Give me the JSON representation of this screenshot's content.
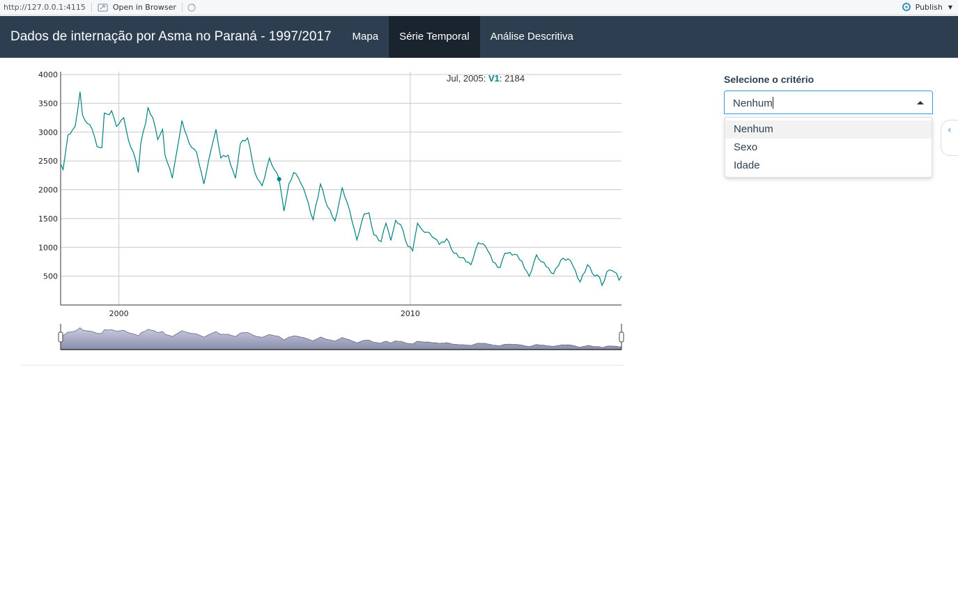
{
  "viewer": {
    "url": "http://127.0.0.1:4115",
    "open_browser": "Open in Browser",
    "publish": "Publish"
  },
  "navbar": {
    "title": "Dados de internação por Asma no Paraná - 1997/2017",
    "tabs": [
      {
        "label": "Mapa",
        "active": false
      },
      {
        "label": "Série Temporal",
        "active": true
      },
      {
        "label": "Análise Descritiva",
        "active": false
      }
    ]
  },
  "legend": {
    "date": "Jul, 2005: ",
    "series": "V1",
    "value": ": 2184"
  },
  "sidebar": {
    "select_label": "Selecione o critério",
    "select_value": "Nenhum",
    "options": [
      "Nenhum",
      "Sexo",
      "Idade"
    ]
  },
  "colors": {
    "navbar": "#2c3e50",
    "navbar_active": "#1a242f",
    "series": "#008080",
    "accent": "#3498db"
  },
  "chart_data": {
    "type": "line",
    "series": [
      {
        "name": "V1",
        "x_start": "1998-01",
        "frequency": "monthly",
        "anchors": [
          [
            "1998-01",
            2450
          ],
          [
            "1998-02",
            2350
          ],
          [
            "1998-04",
            2950
          ],
          [
            "1998-07",
            3100
          ],
          [
            "1998-09",
            3700
          ],
          [
            "1998-10",
            3300
          ],
          [
            "1998-12",
            3150
          ],
          [
            "1999-02",
            3050
          ],
          [
            "1999-04",
            2750
          ],
          [
            "1999-06",
            2730
          ],
          [
            "1999-07",
            3330
          ],
          [
            "1999-09",
            3300
          ],
          [
            "1999-10",
            3370
          ],
          [
            "1999-12",
            3100
          ],
          [
            "2000-03",
            3250
          ],
          [
            "2000-05",
            2850
          ],
          [
            "2000-07",
            2650
          ],
          [
            "2000-09",
            2300
          ],
          [
            "2000-10",
            2800
          ],
          [
            "2000-12",
            3150
          ],
          [
            "2001-01",
            3430
          ],
          [
            "2001-03",
            3250
          ],
          [
            "2001-05",
            2870
          ],
          [
            "2001-07",
            3050
          ],
          [
            "2001-08",
            2600
          ],
          [
            "2001-11",
            2200
          ],
          [
            "2002-01",
            2700
          ],
          [
            "2002-03",
            3200
          ],
          [
            "2002-06",
            2800
          ],
          [
            "2002-09",
            2650
          ],
          [
            "2002-12",
            2100
          ],
          [
            "2003-03",
            2700
          ],
          [
            "2003-05",
            3050
          ],
          [
            "2003-07",
            2550
          ],
          [
            "2003-10",
            2600
          ],
          [
            "2004-01",
            2200
          ],
          [
            "2004-03",
            2800
          ],
          [
            "2004-06",
            2900
          ],
          [
            "2004-09",
            2300
          ],
          [
            "2004-12",
            2070
          ],
          [
            "2005-03",
            2550
          ],
          [
            "2005-05",
            2350
          ],
          [
            "2005-07",
            2184
          ],
          [
            "2005-09",
            1630
          ],
          [
            "2005-11",
            2100
          ],
          [
            "2006-01",
            2300
          ],
          [
            "2006-03",
            2200
          ],
          [
            "2006-06",
            1900
          ],
          [
            "2006-09",
            1480
          ],
          [
            "2006-12",
            2100
          ],
          [
            "2007-03",
            1700
          ],
          [
            "2007-06",
            1460
          ],
          [
            "2007-09",
            2040
          ],
          [
            "2007-12",
            1650
          ],
          [
            "2008-03",
            1130
          ],
          [
            "2008-06",
            1580
          ],
          [
            "2008-08",
            1600
          ],
          [
            "2008-10",
            1220
          ],
          [
            "2009-01",
            1100
          ],
          [
            "2009-03",
            1420
          ],
          [
            "2009-05",
            1120
          ],
          [
            "2009-07",
            1470
          ],
          [
            "2009-09",
            1400
          ],
          [
            "2009-12",
            1020
          ],
          [
            "2010-02",
            940
          ],
          [
            "2010-04",
            1420
          ],
          [
            "2010-06",
            1300
          ],
          [
            "2010-09",
            1250
          ],
          [
            "2011-01",
            1050
          ],
          [
            "2011-04",
            1150
          ],
          [
            "2011-07",
            900
          ],
          [
            "2011-10",
            820
          ],
          [
            "2012-02",
            700
          ],
          [
            "2012-05",
            1080
          ],
          [
            "2012-08",
            1020
          ],
          [
            "2012-11",
            750
          ],
          [
            "2013-02",
            650
          ],
          [
            "2013-04",
            900
          ],
          [
            "2013-08",
            880
          ],
          [
            "2013-11",
            760
          ],
          [
            "2014-02",
            500
          ],
          [
            "2014-05",
            870
          ],
          [
            "2014-07",
            750
          ],
          [
            "2014-10",
            640
          ],
          [
            "2014-12",
            540
          ],
          [
            "2015-03",
            780
          ],
          [
            "2015-06",
            800
          ],
          [
            "2015-08",
            680
          ],
          [
            "2015-11",
            400
          ],
          [
            "2016-02",
            700
          ],
          [
            "2016-05",
            500
          ],
          [
            "2016-07",
            480
          ],
          [
            "2016-08",
            340
          ],
          [
            "2016-10",
            580
          ],
          [
            "2016-12",
            600
          ],
          [
            "2017-02",
            550
          ],
          [
            "2017-03",
            430
          ],
          [
            "2017-04",
            500
          ]
        ],
        "highlight": {
          "x": "2005-07",
          "y": 2184
        }
      }
    ],
    "x_ticks": [
      "2000",
      "2010"
    ],
    "y_ticks": [
      500,
      1000,
      1500,
      2000,
      2500,
      3000,
      3500,
      4000
    ],
    "xlim": [
      "1998-01",
      "2017-04"
    ],
    "ylim": [
      0,
      4000
    ],
    "grid": true,
    "range_selector": true
  }
}
